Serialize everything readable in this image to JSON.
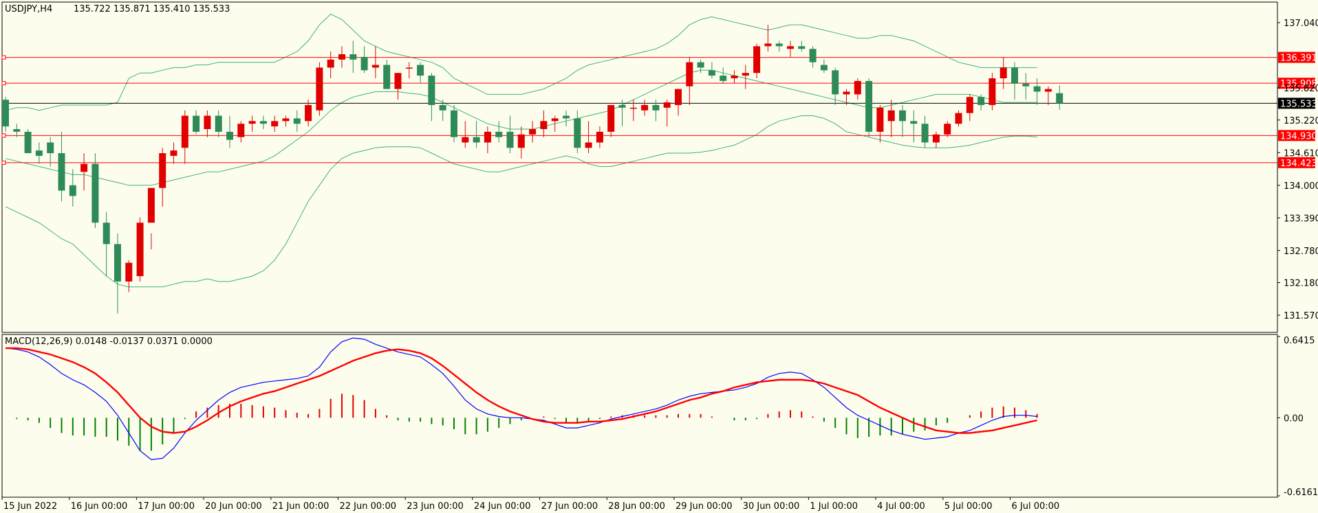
{
  "header": {
    "symbol_tf": "USDJPY,H4",
    "ohlc": "135.722 135.871 135.410 135.533"
  },
  "macd_header": "MACD(12,26,9) 0.0148 -0.0137 0.0371 0.0000",
  "colors": {
    "background": "#fdfdee",
    "bull": "#e00000",
    "bear": "#2e8b57",
    "bollinger": "#3cb371",
    "level_line": "#ff0000",
    "macd_line": "#0000ff",
    "signal_line": "#ff0000",
    "histogram_up": "#e00000",
    "histogram_down": "#008000"
  },
  "chart_data": [
    {
      "type": "candlestick",
      "title": "USDJPY,H4",
      "ylim": [
        131.3,
        137.4
      ],
      "y_ticks": [
        "137.040",
        "136.391",
        "135.908",
        "135.820",
        "135.533",
        "135.220",
        "134.930",
        "134.610",
        "134.423",
        "134.000",
        "133.390",
        "132.780",
        "132.180",
        "131.570"
      ],
      "x_tick_labels": [
        "15 Jun 2022",
        "16 Jun 00:00",
        "17 Jun 00:00",
        "20 Jun 00:00",
        "21 Jun 00:00",
        "22 Jun 00:00",
        "23 Jun 00:00",
        "24 Jun 00:00",
        "27 Jun 00:00",
        "28 Jun 00:00",
        "29 Jun 00:00",
        "30 Jun 00:00",
        "1 Jul 00:00",
        "4 Jul 00:00",
        "5 Jul 00:00",
        "6 Jul 00:00"
      ],
      "price_levels": [
        136.391,
        135.908,
        134.93,
        134.423
      ],
      "current_price": 135.533,
      "series_ohlc": [
        [
          135.6,
          135.65,
          135.0,
          135.1
        ],
        [
          135.05,
          135.15,
          134.9,
          135.0
        ],
        [
          135.0,
          135.05,
          134.6,
          134.6
        ],
        [
          134.65,
          134.8,
          134.4,
          134.55
        ],
        [
          134.8,
          134.9,
          134.35,
          134.6
        ],
        [
          134.6,
          135.0,
          133.7,
          133.9
        ],
        [
          134.0,
          134.3,
          133.6,
          133.8
        ],
        [
          134.25,
          134.6,
          133.9,
          134.4
        ],
        [
          134.4,
          134.6,
          133.2,
          133.3
        ],
        [
          133.3,
          133.5,
          132.3,
          132.9
        ],
        [
          132.9,
          133.1,
          131.6,
          132.2
        ],
        [
          132.2,
          132.6,
          132.0,
          132.55
        ],
        [
          132.3,
          133.4,
          132.2,
          133.3
        ],
        [
          133.3,
          133.1,
          132.8,
          133.95
        ],
        [
          133.95,
          134.7,
          133.6,
          134.6
        ],
        [
          134.55,
          134.8,
          134.4,
          134.65
        ],
        [
          134.7,
          135.4,
          134.4,
          135.3
        ],
        [
          135.3,
          135.4,
          134.95,
          135.0
        ],
        [
          135.05,
          135.4,
          134.9,
          135.3
        ],
        [
          135.3,
          135.4,
          134.9,
          135.0
        ],
        [
          135.0,
          135.3,
          134.7,
          134.85
        ],
        [
          134.9,
          135.2,
          134.8,
          135.15
        ],
        [
          135.15,
          135.3,
          135.0,
          135.2
        ],
        [
          135.2,
          135.3,
          135.05,
          135.15
        ],
        [
          135.1,
          135.3,
          135.0,
          135.2
        ],
        [
          135.2,
          135.3,
          135.1,
          135.25
        ],
        [
          135.25,
          135.4,
          135.0,
          135.15
        ],
        [
          135.2,
          135.6,
          135.1,
          135.5
        ],
        [
          135.4,
          136.3,
          135.3,
          136.2
        ],
        [
          136.2,
          136.5,
          136.0,
          136.35
        ],
        [
          136.35,
          136.6,
          136.2,
          136.45
        ],
        [
          136.45,
          136.7,
          136.1,
          136.35
        ],
        [
          136.4,
          136.6,
          136.1,
          136.15
        ],
        [
          136.2,
          136.6,
          136.0,
          136.25
        ],
        [
          136.25,
          136.35,
          135.8,
          135.8
        ],
        [
          135.8,
          136.1,
          135.6,
          136.1
        ],
        [
          136.2,
          136.3,
          136.0,
          136.2
        ],
        [
          136.25,
          136.3,
          135.9,
          136.05
        ],
        [
          136.05,
          136.1,
          135.2,
          135.5
        ],
        [
          135.5,
          135.6,
          135.2,
          135.4
        ],
        [
          135.4,
          135.5,
          134.8,
          134.9
        ],
        [
          134.8,
          135.2,
          134.7,
          134.9
        ],
        [
          134.9,
          135.2,
          134.7,
          134.8
        ],
        [
          134.8,
          135.1,
          134.6,
          135.0
        ],
        [
          135.0,
          135.2,
          134.8,
          134.9
        ],
        [
          135.0,
          135.3,
          134.6,
          134.7
        ],
        [
          134.7,
          135.1,
          134.5,
          134.95
        ],
        [
          134.95,
          135.2,
          134.8,
          135.05
        ],
        [
          135.05,
          135.4,
          134.9,
          135.2
        ],
        [
          135.2,
          135.3,
          135.0,
          135.25
        ],
        [
          135.3,
          135.4,
          135.1,
          135.25
        ],
        [
          135.25,
          135.4,
          134.6,
          134.7
        ],
        [
          134.7,
          135.2,
          134.6,
          134.8
        ],
        [
          134.8,
          135.1,
          134.7,
          135.0
        ],
        [
          135.0,
          135.4,
          134.9,
          135.5
        ],
        [
          135.5,
          135.6,
          135.1,
          135.45
        ],
        [
          135.45,
          135.6,
          135.2,
          135.45
        ],
        [
          135.4,
          135.6,
          135.3,
          135.5
        ],
        [
          135.5,
          135.6,
          135.2,
          135.4
        ],
        [
          135.45,
          135.6,
          135.1,
          135.55
        ],
        [
          135.5,
          135.8,
          135.3,
          135.8
        ],
        [
          135.85,
          136.4,
          135.5,
          136.3
        ],
        [
          136.3,
          136.35,
          136.1,
          136.2
        ],
        [
          136.15,
          136.3,
          136.0,
          136.05
        ],
        [
          136.05,
          136.2,
          135.9,
          135.95
        ],
        [
          136.0,
          136.15,
          135.9,
          136.05
        ],
        [
          136.05,
          136.25,
          135.8,
          136.1
        ],
        [
          136.1,
          136.65,
          136.0,
          136.6
        ],
        [
          136.6,
          137.0,
          136.5,
          136.65
        ],
        [
          136.65,
          136.7,
          136.5,
          136.6
        ],
        [
          136.55,
          136.7,
          136.4,
          136.6
        ],
        [
          136.6,
          136.7,
          136.5,
          136.55
        ],
        [
          136.55,
          136.6,
          136.2,
          136.3
        ],
        [
          136.25,
          136.35,
          136.1,
          136.15
        ],
        [
          136.15,
          136.2,
          135.5,
          135.7
        ],
        [
          135.7,
          135.8,
          135.5,
          135.75
        ],
        [
          135.7,
          136.0,
          135.6,
          135.95
        ],
        [
          135.95,
          136.0,
          134.9,
          135.0
        ],
        [
          135.0,
          135.5,
          134.8,
          135.45
        ],
        [
          135.2,
          135.6,
          134.9,
          135.4
        ],
        [
          135.4,
          135.5,
          134.9,
          135.2
        ],
        [
          135.2,
          135.4,
          134.8,
          135.15
        ],
        [
          135.15,
          135.3,
          134.7,
          134.8
        ],
        [
          134.8,
          135.0,
          134.7,
          134.95
        ],
        [
          134.95,
          135.2,
          134.9,
          135.15
        ],
        [
          135.15,
          135.4,
          135.1,
          135.35
        ],
        [
          135.35,
          135.7,
          135.2,
          135.65
        ],
        [
          135.65,
          135.7,
          135.4,
          135.5
        ],
        [
          135.5,
          136.1,
          135.4,
          136.0
        ],
        [
          136.0,
          136.4,
          135.8,
          136.2
        ],
        [
          136.2,
          136.3,
          135.6,
          135.9
        ],
        [
          135.9,
          136.1,
          135.6,
          135.85
        ],
        [
          135.85,
          136.0,
          135.5,
          135.75
        ],
        [
          135.75,
          135.85,
          135.5,
          135.8
        ],
        [
          135.722,
          135.871,
          135.41,
          135.533
        ]
      ],
      "bollinger_upper": [
        135.4,
        135.45,
        135.45,
        135.4,
        135.45,
        135.5,
        135.5,
        135.5,
        135.5,
        135.5,
        135.55,
        136.0,
        136.1,
        136.1,
        136.15,
        136.2,
        136.2,
        136.25,
        136.25,
        136.3,
        136.3,
        136.3,
        136.3,
        136.3,
        136.3,
        136.4,
        136.5,
        136.7,
        137.0,
        137.2,
        137.1,
        136.9,
        136.7,
        136.6,
        136.5,
        136.45,
        136.4,
        136.35,
        136.3,
        136.2,
        136.0,
        135.9,
        135.8,
        135.7,
        135.7,
        135.7,
        135.7,
        135.75,
        135.8,
        135.9,
        136.0,
        136.15,
        136.25,
        136.3,
        136.35,
        136.4,
        136.45,
        136.5,
        136.55,
        136.65,
        136.8,
        137.0,
        137.1,
        137.15,
        137.1,
        137.05,
        137.0,
        136.95,
        136.9,
        136.95,
        137.0,
        137.0,
        136.95,
        136.9,
        136.85,
        136.8,
        136.75,
        136.75,
        136.8,
        136.8,
        136.75,
        136.7,
        136.6,
        136.5,
        136.4,
        136.3,
        136.25,
        136.2,
        136.2,
        136.2,
        136.2,
        136.2,
        136.2
      ],
      "bollinger_middle": [
        134.5,
        134.45,
        134.4,
        134.35,
        134.3,
        134.25,
        134.2,
        134.2,
        134.15,
        134.1,
        134.05,
        134.0,
        134.0,
        134.0,
        134.05,
        134.1,
        134.15,
        134.2,
        134.25,
        134.25,
        134.3,
        134.35,
        134.4,
        134.45,
        134.55,
        134.7,
        134.85,
        135.0,
        135.2,
        135.4,
        135.55,
        135.65,
        135.7,
        135.75,
        135.75,
        135.75,
        135.72,
        135.7,
        135.65,
        135.55,
        135.45,
        135.35,
        135.25,
        135.15,
        135.1,
        135.05,
        135.05,
        135.05,
        135.1,
        135.15,
        135.2,
        135.25,
        135.3,
        135.35,
        135.4,
        135.5,
        135.6,
        135.7,
        135.8,
        135.9,
        136.0,
        136.1,
        136.15,
        136.15,
        136.1,
        136.05,
        136.0,
        135.95,
        135.9,
        135.85,
        135.8,
        135.75,
        135.7,
        135.65,
        135.6,
        135.55,
        135.5,
        135.45,
        135.45,
        135.5,
        135.55,
        135.6,
        135.65,
        135.7,
        135.7,
        135.7,
        135.7,
        135.65,
        135.6,
        135.55,
        135.55,
        135.55,
        135.55
      ],
      "bollinger_lower": [
        133.6,
        133.5,
        133.4,
        133.3,
        133.15,
        133.0,
        132.9,
        132.7,
        132.5,
        132.3,
        132.15,
        132.1,
        132.1,
        132.1,
        132.1,
        132.15,
        132.2,
        132.2,
        132.25,
        132.2,
        132.2,
        132.25,
        132.3,
        132.4,
        132.6,
        132.9,
        133.3,
        133.7,
        134.0,
        134.3,
        134.5,
        134.6,
        134.65,
        134.7,
        134.72,
        134.72,
        134.72,
        134.7,
        134.6,
        134.5,
        134.4,
        134.35,
        134.3,
        134.25,
        134.25,
        134.3,
        134.35,
        134.4,
        134.45,
        134.5,
        134.55,
        134.5,
        134.4,
        134.35,
        134.35,
        134.4,
        134.45,
        134.5,
        134.55,
        134.6,
        134.6,
        134.6,
        134.62,
        134.65,
        134.7,
        134.75,
        134.85,
        134.95,
        135.1,
        135.2,
        135.25,
        135.3,
        135.3,
        135.25,
        135.15,
        135.0,
        134.95,
        134.9,
        134.85,
        134.8,
        134.75,
        134.72,
        134.7,
        134.7,
        134.7,
        134.72,
        134.75,
        134.8,
        134.85,
        134.9,
        134.92,
        134.92,
        134.9
      ]
    },
    {
      "type": "macd",
      "title": "MACD(12,26,9)",
      "ylim": [
        -0.6161,
        0.6415
      ],
      "y_ticks": [
        "0.6415",
        "0.00",
        "-0.6161"
      ],
      "macd_line": [
        0.55,
        0.54,
        0.52,
        0.48,
        0.42,
        0.35,
        0.3,
        0.26,
        0.2,
        0.13,
        0.02,
        -0.12,
        -0.26,
        -0.33,
        -0.32,
        -0.24,
        -0.12,
        -0.02,
        0.06,
        0.14,
        0.2,
        0.24,
        0.26,
        0.28,
        0.29,
        0.3,
        0.31,
        0.33,
        0.4,
        0.52,
        0.6,
        0.63,
        0.62,
        0.58,
        0.55,
        0.52,
        0.5,
        0.48,
        0.42,
        0.35,
        0.25,
        0.14,
        0.07,
        0.03,
        0.01,
        0.0,
        0.0,
        -0.01,
        -0.02,
        -0.05,
        -0.08,
        -0.08,
        -0.06,
        -0.04,
        -0.01,
        0.01,
        0.03,
        0.05,
        0.07,
        0.1,
        0.14,
        0.17,
        0.19,
        0.2,
        0.21,
        0.22,
        0.24,
        0.27,
        0.32,
        0.35,
        0.36,
        0.35,
        0.3,
        0.24,
        0.16,
        0.08,
        0.02,
        -0.02,
        -0.06,
        -0.1,
        -0.13,
        -0.15,
        -0.17,
        -0.16,
        -0.15,
        -0.12,
        -0.1,
        -0.06,
        -0.02,
        0.01,
        0.02,
        0.02,
        0.01
      ],
      "signal_line": [
        0.55,
        0.55,
        0.54,
        0.52,
        0.5,
        0.47,
        0.44,
        0.4,
        0.35,
        0.28,
        0.2,
        0.1,
        0.0,
        -0.07,
        -0.11,
        -0.12,
        -0.11,
        -0.07,
        -0.02,
        0.04,
        0.09,
        0.13,
        0.16,
        0.19,
        0.21,
        0.24,
        0.27,
        0.3,
        0.33,
        0.37,
        0.41,
        0.45,
        0.48,
        0.51,
        0.53,
        0.54,
        0.53,
        0.51,
        0.47,
        0.41,
        0.34,
        0.27,
        0.2,
        0.14,
        0.09,
        0.05,
        0.02,
        -0.01,
        -0.03,
        -0.04,
        -0.04,
        -0.04,
        -0.03,
        -0.03,
        -0.02,
        -0.01,
        0.01,
        0.03,
        0.05,
        0.08,
        0.11,
        0.14,
        0.16,
        0.19,
        0.21,
        0.24,
        0.26,
        0.28,
        0.29,
        0.3,
        0.3,
        0.3,
        0.29,
        0.27,
        0.24,
        0.21,
        0.18,
        0.13,
        0.08,
        0.04,
        0.0,
        -0.04,
        -0.07,
        -0.1,
        -0.11,
        -0.12,
        -0.12,
        -0.11,
        -0.1,
        -0.08,
        -0.06,
        -0.04,
        -0.02
      ],
      "histogram": [
        0.0,
        -0.01,
        -0.02,
        -0.04,
        -0.08,
        -0.12,
        -0.14,
        -0.14,
        -0.15,
        -0.15,
        -0.18,
        -0.22,
        -0.26,
        -0.26,
        -0.21,
        -0.12,
        -0.01,
        0.05,
        0.08,
        0.1,
        0.11,
        0.11,
        0.1,
        0.09,
        0.08,
        0.06,
        0.04,
        0.03,
        0.07,
        0.15,
        0.19,
        0.18,
        0.14,
        0.07,
        0.02,
        -0.02,
        -0.03,
        -0.03,
        -0.05,
        -0.06,
        -0.09,
        -0.13,
        -0.13,
        -0.11,
        -0.08,
        -0.05,
        -0.02,
        0.0,
        0.01,
        -0.01,
        -0.04,
        -0.04,
        -0.03,
        -0.01,
        0.01,
        0.02,
        0.02,
        0.02,
        0.02,
        0.02,
        0.03,
        0.03,
        0.03,
        0.01,
        0.0,
        -0.02,
        -0.02,
        -0.01,
        0.03,
        0.05,
        0.06,
        0.05,
        0.01,
        -0.03,
        -0.08,
        -0.13,
        -0.16,
        -0.15,
        -0.14,
        -0.14,
        -0.13,
        -0.11,
        -0.1,
        -0.06,
        -0.04,
        0.0,
        0.02,
        0.05,
        0.08,
        0.09,
        0.08,
        0.06,
        0.03
      ]
    }
  ]
}
